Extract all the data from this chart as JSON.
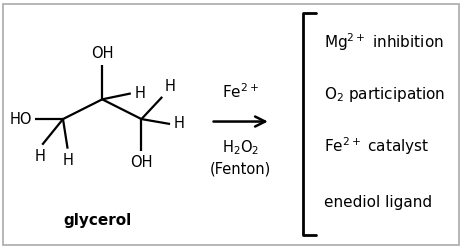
{
  "bg_color": "#f5f5f5",
  "border_color": "#aaaaaa",
  "text_color": "#000000",
  "fig_bg": "#f5f5f5",
  "above_arrow": "Fe$^{2+}$",
  "below_arrow_1": "H$_2$O$_2$",
  "below_arrow_2": "(Fenton)",
  "label": "glycerol",
  "right_items": [
    "Mg$^{2+}$ inhibition",
    "O$_2$ participation",
    "Fe$^{2+}$ catalyst",
    "enediol ligand"
  ],
  "figsize": [
    4.74,
    2.48
  ],
  "dpi": 100
}
